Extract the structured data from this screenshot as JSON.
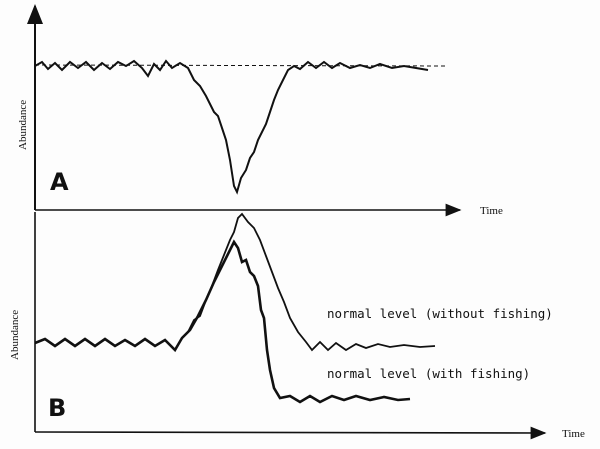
{
  "panel_a": {
    "letter": "A",
    "y_axis_label": "Abundance",
    "x_axis_label": "Time"
  },
  "panel_b": {
    "letter": "B",
    "y_axis_label": "Abundance",
    "x_axis_label": "Time",
    "label_without_fishing": "normal level (without fishing)",
    "label_with_fishing": "normal level (with fishing)"
  },
  "colors": {
    "ink": "#111111",
    "paper": "#fdfdfd"
  }
}
